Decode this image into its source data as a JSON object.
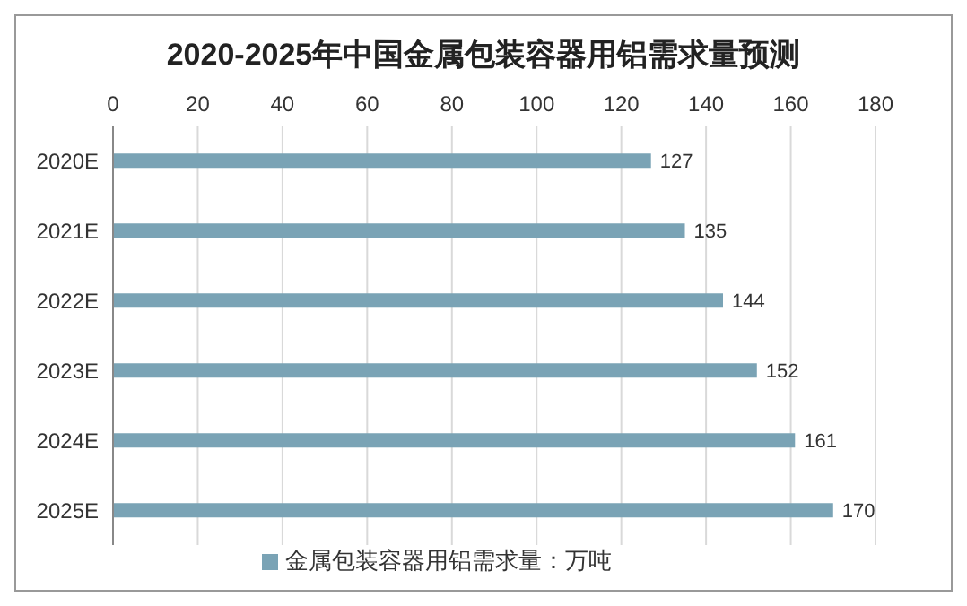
{
  "chart_data": {
    "type": "bar",
    "orientation": "horizontal",
    "title": "2020-2025年中国金属包装容器用铝需求量预测",
    "categories": [
      "2020E",
      "2021E",
      "2022E",
      "2023E",
      "2024E",
      "2025E"
    ],
    "series": [
      {
        "name": "金属包装容器用铝需求量：万吨",
        "color": "#7aa3b5",
        "values": [
          127,
          135,
          144,
          152,
          161,
          170
        ]
      }
    ],
    "xlim": [
      0,
      180
    ],
    "xticks": [
      0,
      20,
      40,
      60,
      80,
      100,
      120,
      140,
      160,
      180
    ],
    "grid": "x",
    "legend": "bottom",
    "data_labels": true
  }
}
